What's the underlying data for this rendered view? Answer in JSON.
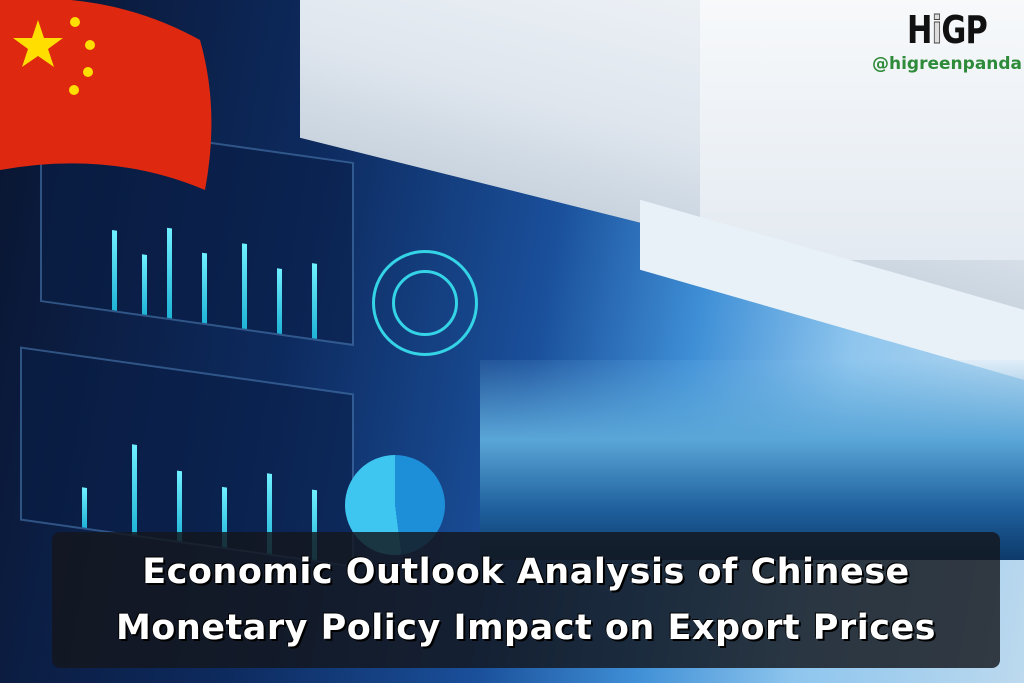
{
  "logo": {
    "mark_left": "H",
    "mark_i": "i",
    "mark_right": "GP",
    "handle": "@higreenpanda"
  },
  "caption": {
    "line1": "Economic Outlook Analysis of Chinese",
    "line2": "Monetary Policy Impact on Export Prices"
  },
  "colors": {
    "flag_red": "#de2910",
    "flag_star": "#ffde00",
    "logo_green": "#2e8b3a",
    "caption_bg": "#14161c"
  },
  "icons": [
    "china-flag"
  ]
}
